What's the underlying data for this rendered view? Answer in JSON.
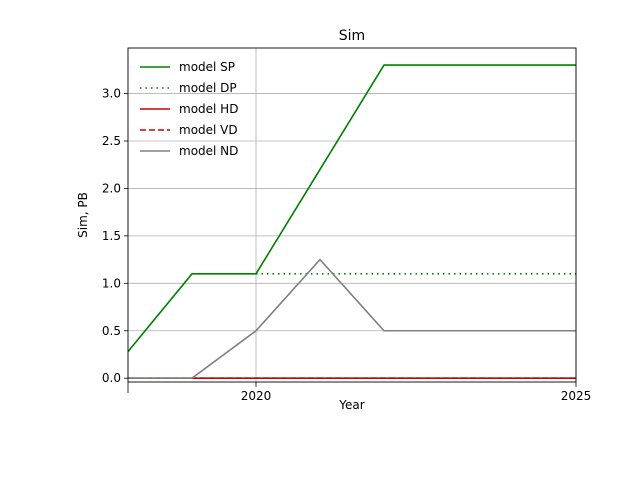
{
  "chart_data": {
    "type": "line",
    "title": "Sim",
    "xlabel": "Year",
    "ylabel": "Sim, PB",
    "xlim": [
      2018,
      2025
    ],
    "ylim": [
      -0.04,
      3.48
    ],
    "x_ticks": [
      2020,
      2025
    ],
    "x_tick_labels": [
      "2020",
      "2025"
    ],
    "y_ticks": [
      0.0,
      0.5,
      1.0,
      1.5,
      2.0,
      2.5,
      3.0
    ],
    "y_tick_labels": [
      "0.0",
      "0.5",
      "1.0",
      "1.5",
      "2.0",
      "2.5",
      "3.0"
    ],
    "grid": true,
    "legend_position": "top-left",
    "series": [
      {
        "name": "model SP",
        "color": "#008000",
        "dash": "solid",
        "x": [
          2018,
          2019,
          2020,
          2021,
          2022,
          2025
        ],
        "y": [
          0.28,
          1.1,
          1.1,
          2.2,
          3.3,
          3.3
        ]
      },
      {
        "name": "model DP",
        "color": "#008000",
        "dash": "dotted",
        "x": [
          2020,
          2021,
          2022,
          2025
        ],
        "y": [
          1.1,
          1.1,
          1.1,
          1.1
        ]
      },
      {
        "name": "model HD",
        "color": "#cc0000",
        "dash": "solid",
        "x": [
          2018,
          2025
        ],
        "y": [
          0,
          0
        ]
      },
      {
        "name": "model VD",
        "color": "#cc0000",
        "dash": "dashed",
        "x": [
          2018,
          2025
        ],
        "y": [
          0,
          0
        ]
      },
      {
        "name": "model ND",
        "color": "#808080",
        "dash": "solid",
        "x": [
          2018,
          2019,
          2020,
          2021,
          2022,
          2025
        ],
        "y": [
          0,
          0,
          0.5,
          1.25,
          0.5,
          0.5
        ]
      }
    ]
  }
}
